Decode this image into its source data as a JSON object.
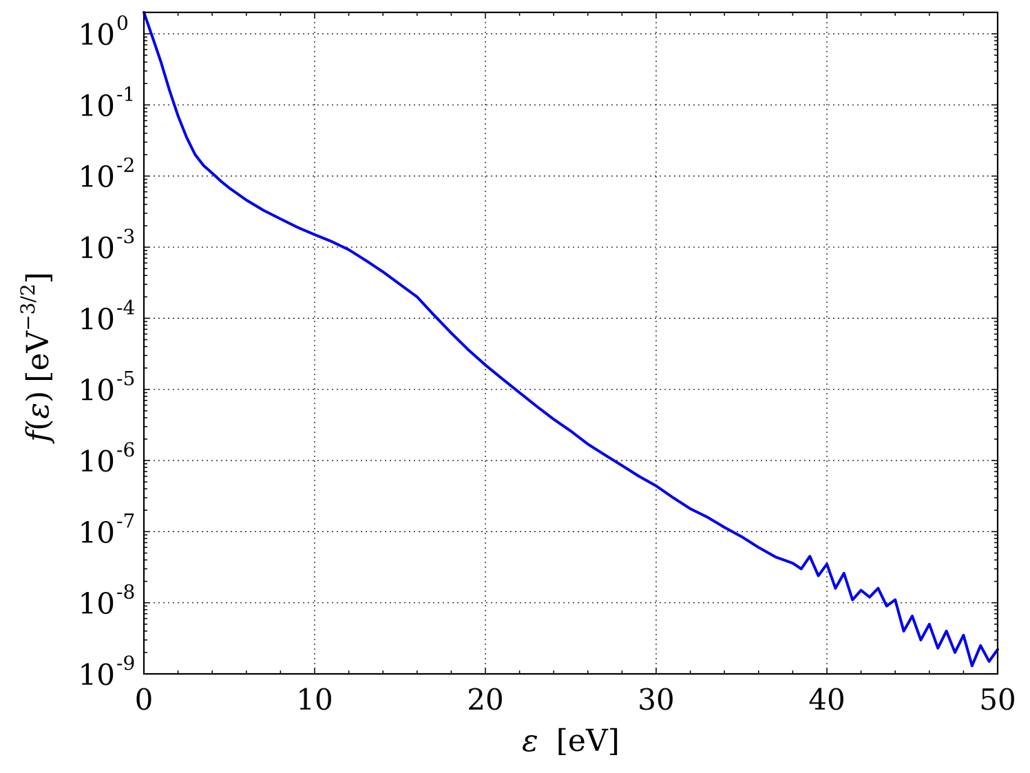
{
  "chart_data": {
    "type": "line",
    "title": "",
    "xlabel": "ε [eV]",
    "ylabel": "f(ε) [eV^{−3/2}]",
    "ylabel_parts": {
      "func": "f",
      "var": "ε",
      "unit_base": "eV",
      "unit_exp": "−3/2"
    },
    "xlabel_parts": {
      "var": "ε",
      "unit": "[eV]"
    },
    "xscale": "linear",
    "yscale": "log",
    "xlim": [
      0,
      50
    ],
    "ylim": [
      1e-09,
      2
    ],
    "grid": true,
    "legend": "none",
    "x_ticks": [
      {
        "value": 0,
        "label": "0"
      },
      {
        "value": 10,
        "label": "10"
      },
      {
        "value": 20,
        "label": "20"
      },
      {
        "value": 30,
        "label": "30"
      },
      {
        "value": 40,
        "label": "40"
      },
      {
        "value": 50,
        "label": "50"
      }
    ],
    "y_ticks": [
      {
        "value": 1,
        "base": "10",
        "exp": "0"
      },
      {
        "value": 0.1,
        "base": "10",
        "exp": "-1"
      },
      {
        "value": 0.01,
        "base": "10",
        "exp": "-2"
      },
      {
        "value": 0.001,
        "base": "10",
        "exp": "-3"
      },
      {
        "value": 0.0001,
        "base": "10",
        "exp": "-4"
      },
      {
        "value": 1e-05,
        "base": "10",
        "exp": "-5"
      },
      {
        "value": 1e-06,
        "base": "10",
        "exp": "-6"
      },
      {
        "value": 1e-07,
        "base": "10",
        "exp": "-7"
      },
      {
        "value": 1e-08,
        "base": "10",
        "exp": "-8"
      },
      {
        "value": 1e-09,
        "base": "10",
        "exp": "-9"
      }
    ],
    "series": [
      {
        "color": "#0000ee",
        "x": [
          0,
          0.5,
          1,
          1.5,
          2,
          2.5,
          3,
          3.5,
          4,
          4.5,
          5,
          6,
          7,
          8,
          9,
          10,
          11,
          12,
          13,
          14,
          15,
          16,
          17,
          18,
          19,
          20,
          21,
          22,
          23,
          24,
          25,
          26,
          27,
          28,
          29,
          30,
          31,
          32,
          33,
          34,
          35,
          36,
          37,
          38,
          38.5,
          39,
          39.5,
          40,
          40.5,
          41,
          41.5,
          42,
          42.5,
          43,
          43.5,
          44,
          44.5,
          45,
          45.5,
          46,
          46.5,
          47,
          47.5,
          48,
          48.5,
          49,
          49.5,
          50
        ],
        "y": [
          2.0,
          0.9,
          0.4,
          0.16,
          0.07,
          0.035,
          0.02,
          0.014,
          0.011,
          0.0085,
          0.0068,
          0.0046,
          0.0033,
          0.0025,
          0.0019,
          0.0015,
          0.0012,
          0.00092,
          0.00065,
          0.00045,
          0.0003,
          0.0002,
          0.00011,
          6.2e-05,
          3.6e-05,
          2.2e-05,
          1.4e-05,
          9e-06,
          5.8e-06,
          3.8e-06,
          2.6e-06,
          1.7e-06,
          1.2e-06,
          8.5e-07,
          6e-07,
          4.4e-07,
          3e-07,
          2.1e-07,
          1.6e-07,
          1.15e-07,
          8.5e-08,
          6e-08,
          4.4e-08,
          3.6e-08,
          3e-08,
          4.5e-08,
          2.4e-08,
          3.5e-08,
          1.6e-08,
          2.6e-08,
          1.1e-08,
          1.5e-08,
          1.2e-08,
          1.6e-08,
          9e-09,
          1.1e-08,
          4e-09,
          6.5e-09,
          3e-09,
          5e-09,
          2.3e-09,
          4e-09,
          2e-09,
          3.5e-09,
          1.3e-09,
          2.5e-09,
          1.5e-09,
          2.2e-09
        ]
      }
    ]
  }
}
